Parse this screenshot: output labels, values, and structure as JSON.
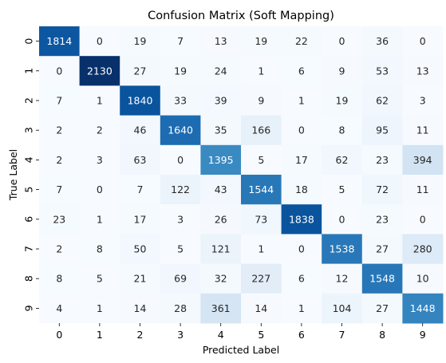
{
  "chart_data": {
    "type": "heatmap",
    "title": "Confusion Matrix (Soft Mapping)",
    "xlabel": "Predicted Label",
    "ylabel": "True Label",
    "x_categories": [
      "0",
      "1",
      "2",
      "3",
      "4",
      "5",
      "6",
      "7",
      "8",
      "9"
    ],
    "y_categories": [
      "0",
      "1",
      "2",
      "3",
      "4",
      "5",
      "6",
      "7",
      "8",
      "9"
    ],
    "colormap": "Blues",
    "colorbar": false,
    "annotated": true,
    "value_range": [
      0,
      2130
    ],
    "matrix": [
      [
        1814,
        0,
        19,
        7,
        13,
        19,
        22,
        0,
        36,
        0
      ],
      [
        0,
        2130,
        27,
        19,
        24,
        1,
        6,
        9,
        53,
        13
      ],
      [
        7,
        1,
        1840,
        33,
        39,
        9,
        1,
        19,
        62,
        3
      ],
      [
        2,
        2,
        46,
        1640,
        35,
        166,
        0,
        8,
        95,
        11
      ],
      [
        2,
        3,
        63,
        0,
        1395,
        5,
        17,
        62,
        23,
        394
      ],
      [
        7,
        0,
        7,
        122,
        43,
        1544,
        18,
        5,
        72,
        11
      ],
      [
        23,
        1,
        17,
        3,
        26,
        73,
        1838,
        0,
        23,
        0
      ],
      [
        2,
        8,
        50,
        5,
        121,
        1,
        0,
        1538,
        27,
        280
      ],
      [
        8,
        5,
        21,
        69,
        32,
        227,
        6,
        12,
        1548,
        10
      ],
      [
        4,
        1,
        14,
        28,
        361,
        14,
        1,
        104,
        27,
        1448
      ]
    ]
  }
}
